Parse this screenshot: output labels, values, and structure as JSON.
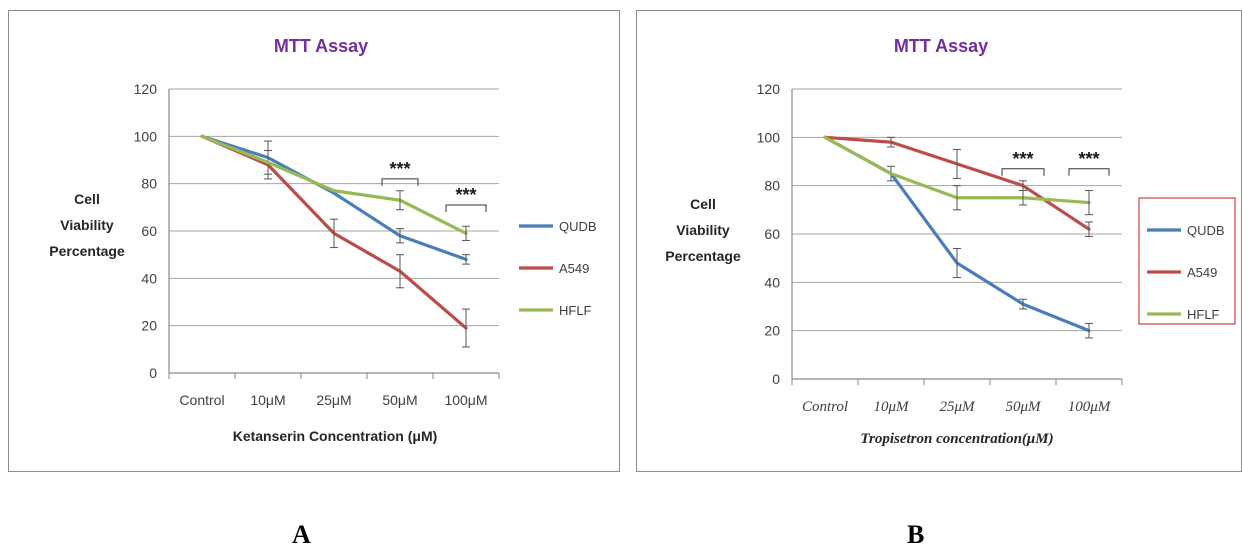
{
  "colors": {
    "QUDB": "#4a7ebb",
    "A549": "#be4b48",
    "HFLF": "#98b954",
    "title": "#7030a0",
    "legend_border_B": "#d04040"
  },
  "panel_labels": [
    "A",
    "B"
  ],
  "chart_data": [
    {
      "type": "line",
      "title": "MTT Assay",
      "xlabel": "Ketanserin Concentration (μM)",
      "ylabel_lines": [
        "Cell",
        "Viability",
        "Percentage"
      ],
      "categories": [
        "Control",
        "10μM",
        "25μM",
        "50μM",
        "100μM"
      ],
      "ylim": [
        0,
        120
      ],
      "yticks": [
        0,
        20,
        40,
        60,
        80,
        100,
        120
      ],
      "grid": true,
      "legend": "right",
      "series": [
        {
          "name": "QUDB",
          "values": [
            100,
            91,
            76,
            58,
            48
          ],
          "errors": [
            0,
            7,
            0,
            3,
            2
          ]
        },
        {
          "name": "A549",
          "values": [
            100,
            88,
            59,
            43,
            19
          ],
          "errors": [
            0,
            6,
            6,
            7,
            8
          ]
        },
        {
          "name": "HFLF",
          "values": [
            100,
            89,
            77,
            73,
            59
          ],
          "errors": [
            0,
            0,
            0,
            4,
            3
          ]
        }
      ],
      "annotations": [
        {
          "text": "***",
          "between": [
            3,
            3
          ],
          "y": 82
        },
        {
          "text": "***",
          "between": [
            4,
            4
          ],
          "y": 71
        }
      ]
    },
    {
      "type": "line",
      "title": "MTT Assay",
      "xlabel": "Tropisetron concentration(μM)",
      "ylabel_lines": [
        "Cell",
        "Viability",
        "Percentage"
      ],
      "categories": [
        "Control",
        "10μM",
        "25μM",
        "50μM",
        "100μM"
      ],
      "ylim": [
        0,
        120
      ],
      "yticks": [
        0,
        20,
        40,
        60,
        80,
        100,
        120
      ],
      "grid": true,
      "legend": "right",
      "series": [
        {
          "name": "QUDB",
          "values": [
            100,
            85,
            48,
            31,
            20
          ],
          "errors": [
            0,
            3,
            6,
            2,
            3
          ]
        },
        {
          "name": "A549",
          "values": [
            100,
            98,
            89,
            80,
            62
          ],
          "errors": [
            0,
            2,
            6,
            2,
            3
          ]
        },
        {
          "name": "HFLF",
          "values": [
            100,
            85,
            75,
            75,
            73
          ],
          "errors": [
            0,
            0,
            5,
            3,
            5
          ]
        }
      ],
      "annotations": [
        {
          "text": "***",
          "between": [
            3,
            3
          ],
          "y": 87
        },
        {
          "text": "***",
          "between": [
            4,
            4
          ],
          "y": 87
        }
      ]
    }
  ]
}
